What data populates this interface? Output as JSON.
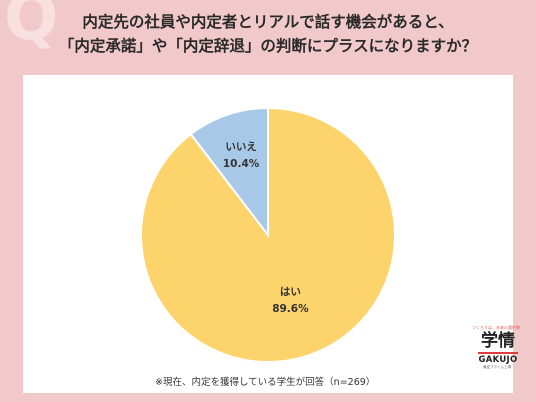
{
  "title": {
    "line1": "内定先の社員や内定者とリアルで話す機会があると、",
    "line2": "「内定承諾」や「内定辞退」の判断にプラスになりますか？"
  },
  "decoration": {
    "glyph": "Q"
  },
  "chart_data": {
    "type": "pie",
    "title": "内定先の社員や内定者とリアルで話す機会があると、「内定承諾」や「内定辞退」の判断にプラスになりますか？",
    "slices": [
      {
        "label": "はい",
        "value": 89.6,
        "value_label": "89.6%",
        "color": "#fdd46c"
      },
      {
        "label": "いいえ",
        "value": 10.4,
        "value_label": "10.4%",
        "color": "#a8c8e8"
      }
    ],
    "start": "12 o'clock",
    "direction": "clockwise",
    "edge_color": "#ffffff"
  },
  "note": "※現在、内定を獲得している学生が回答（n=269）",
  "logo": {
    "tagline": "つくろうは、未来の選択肢",
    "kanji": "学情",
    "word": "GAKUJO",
    "sub": "東証プライム上場"
  }
}
